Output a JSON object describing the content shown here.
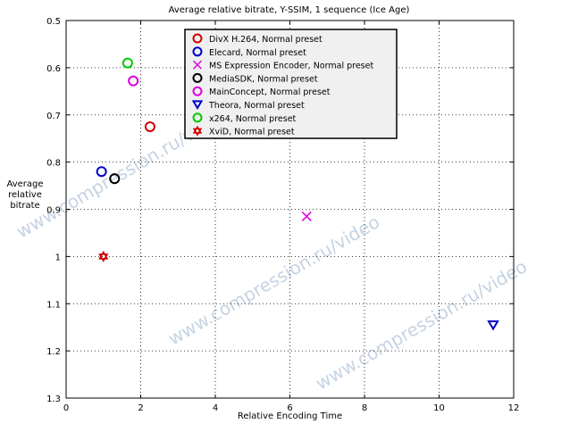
{
  "chart_data": {
    "type": "scatter",
    "title": "Average relative bitrate, Y-SSIM, 1 sequence (Ice Age)",
    "xlabel": "Relative Encoding Time",
    "ylabel": "Average\nrelative\nbitrate",
    "xlim": [
      0,
      12
    ],
    "ylim": [
      0.5,
      1.3
    ],
    "y_reversed": true,
    "xticks": [
      "0",
      "2",
      "4",
      "6",
      "8",
      "10",
      "12"
    ],
    "yticks": [
      "0.5",
      "0.6",
      "0.7",
      "0.8",
      "0.9",
      "1",
      "1.1",
      "1.2",
      "1.3"
    ],
    "grid": true,
    "legend_position": "top-center",
    "series": [
      {
        "name": "DivX H.264, Normal preset",
        "marker": "circle",
        "color": "#d00000",
        "x": [
          2.25
        ],
        "y": [
          0.725
        ]
      },
      {
        "name": "Elecard, Normal preset",
        "marker": "circle",
        "color": "#0000cc",
        "x": [
          0.95
        ],
        "y": [
          0.82
        ]
      },
      {
        "name": "MS Expression Encoder, Normal preset",
        "marker": "x",
        "color": "#dd00dd",
        "x": [
          6.45
        ],
        "y": [
          0.915
        ]
      },
      {
        "name": "MediaSDK, Normal preset",
        "marker": "circle",
        "color": "#000000",
        "x": [
          1.3
        ],
        "y": [
          0.835
        ]
      },
      {
        "name": "MainConcept, Normal preset",
        "marker": "circle",
        "color": "#dd00dd",
        "x": [
          1.8
        ],
        "y": [
          0.628
        ]
      },
      {
        "name": "Theora, Normal preset",
        "marker": "triangle-down",
        "color": "#0000cc",
        "x": [
          11.45
        ],
        "y": [
          1.145
        ]
      },
      {
        "name": "x264, Normal preset",
        "marker": "circle",
        "color": "#00cc00",
        "x": [
          1.65
        ],
        "y": [
          0.59
        ]
      },
      {
        "name": "XviD, Normal preset",
        "marker": "hexagram",
        "color": "#d00000",
        "x": [
          1.0
        ],
        "y": [
          1.0
        ]
      }
    ],
    "watermark": "www.compression.ru/video"
  }
}
